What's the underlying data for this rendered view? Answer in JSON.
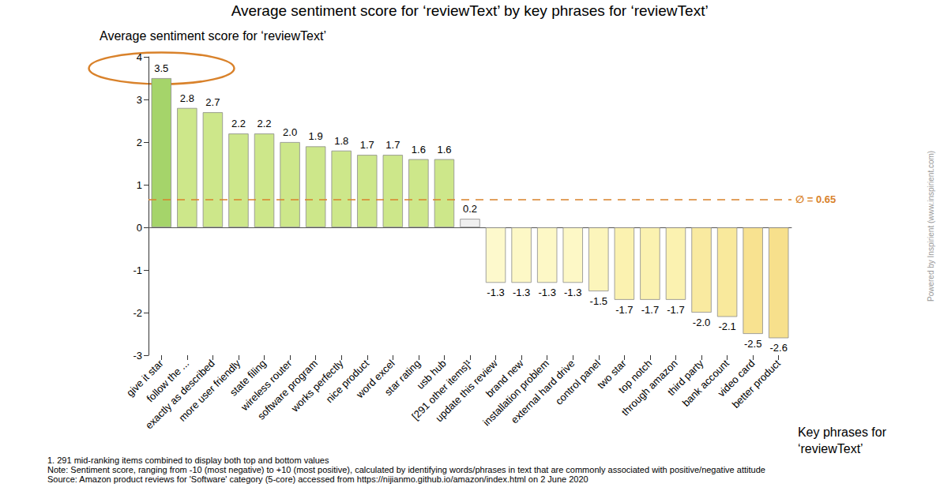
{
  "chart_data": {
    "type": "bar",
    "title": "Average sentiment score for ‘reviewText’ by key phrases for ‘reviewText’",
    "y_label": "Average sentiment score for ‘reviewText’",
    "x_label": "Key phrases for\n‘reviewText’",
    "categories": [
      "give it star",
      "follow the ...",
      "exactly as described",
      "more user friendly",
      "state filing",
      "wireless router",
      "software program",
      "works perfectly",
      "nice product",
      "word excel",
      "star rating",
      "usb hub",
      "[291 other items]¹",
      "update this review",
      "brand new",
      "installation problem",
      "external hard drive",
      "control panel",
      "two star",
      "top notch",
      "through amazon",
      "third party",
      "bank account",
      "video card",
      "better product"
    ],
    "values": [
      3.5,
      2.8,
      2.7,
      2.2,
      2.2,
      2.0,
      1.9,
      1.8,
      1.7,
      1.7,
      1.6,
      1.6,
      0.2,
      -1.3,
      -1.3,
      -1.3,
      -1.3,
      -1.5,
      -1.7,
      -1.7,
      -1.7,
      -2.0,
      -2.1,
      -2.5,
      -2.6
    ],
    "colors": [
      "#a5d46a",
      "#cde78a",
      "#cde78a",
      "#cde78a",
      "#cde78a",
      "#cde78a",
      "#cde78a",
      "#cde78a",
      "#cde78a",
      "#cde78a",
      "#cde78a",
      "#cde78a",
      "#efefef",
      "#fdf9cc",
      "#fdf8c6",
      "#fdf8c6",
      "#fdf8c6",
      "#fcf5bb",
      "#fbf2b0",
      "#fbf2b0",
      "#fbf2b0",
      "#f9eaa0",
      "#f9e99c",
      "#f8e290",
      "#f7e08c"
    ],
    "value_labels": [
      "3.5",
      "2.8",
      "2.7",
      "2.2",
      "2.2",
      "2.0",
      "1.9",
      "1.8",
      "1.7",
      "1.7",
      "1.6",
      "1.6",
      "0.2",
      "-1.3",
      "-1.3",
      "-1.3",
      "-1.3",
      "-1.5",
      "-1.7",
      "-1.7",
      "-1.7",
      "-2.0",
      "-2.1",
      "-2.5",
      "-2.6"
    ],
    "ylim": [
      -3,
      4
    ],
    "yticks": [
      -3,
      -2,
      -1,
      0,
      1,
      2,
      3,
      4
    ],
    "grid": false,
    "data_labels": true,
    "average": {
      "value": 0.65,
      "label": "∅ = 0.65"
    },
    "notes": [
      "1. 291 mid-ranking items combined to display both top and bottom values",
      "Note: Sentiment score, ranging from -10 (most negative) to +10 (most positive), calculated by identifying words/phrases in text that are commonly associated with positive/negative attitude",
      "Source: Amazon product reviews for 'Software' category (5-core) accessed from https://nijianmo.github.io/amazon/index.html on 2 June 2020"
    ],
    "credit": "Powered by Inspirient (www.inspirient.com)"
  }
}
